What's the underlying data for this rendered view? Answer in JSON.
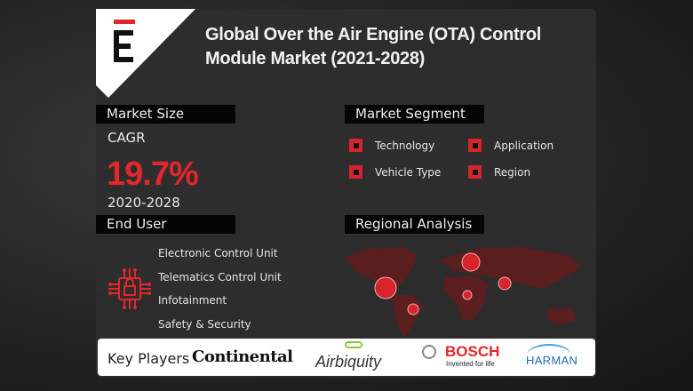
{
  "header": {
    "title_line1": "Global Over the Air Engine (OTA) Control",
    "title_line2": "Module Market (2021-2028)",
    "logo_letter": "E"
  },
  "market_size": {
    "heading": "Market Size",
    "cagr_label": "CAGR",
    "cagr_value": "19.7%",
    "period": "2020-2028"
  },
  "market_segment": {
    "heading": "Market Segment",
    "items": [
      "Technology",
      "Application",
      "Vehicle Type",
      "Region"
    ]
  },
  "end_user": {
    "heading": "End User",
    "items": [
      "Electronic Control Unit",
      "Telematics Control Unit",
      "Infotainment",
      "Safety & Security"
    ],
    "icon": "chip-lock-icon"
  },
  "regional": {
    "heading": "Regional Analysis",
    "icon": "world-map"
  },
  "key_players": {
    "label": "Key Players",
    "players": [
      "Continental",
      "Airbiquity",
      "BOSCH",
      "HARMAN"
    ],
    "bosch_tagline": "Invented for life"
  },
  "colors": {
    "accent": "#e3262b",
    "panel": "#2d2d2d",
    "map": "#5a1e1e"
  }
}
